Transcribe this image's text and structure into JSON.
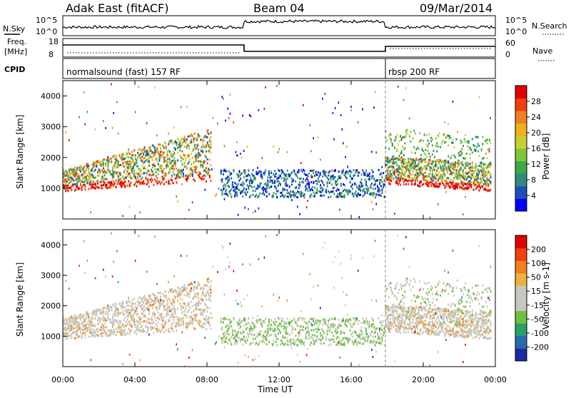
{
  "header": {
    "station": "Adak East (fitACF)",
    "beam": "Beam 04",
    "date": "09/Mar/2014"
  },
  "top_panels": {
    "nsky_label": "N.Sky",
    "nsky_ticks": [
      "10^5",
      "10^0"
    ],
    "nsearch_label": "N.Search",
    "nsearch_ticks": [
      "10^5",
      "10^0"
    ],
    "freq_label": "Freq.",
    "freq_unit": "[MHz]",
    "freq_ticks": [
      "18",
      "8"
    ],
    "nave_label": "Nave",
    "nave_ticks": [
      "60",
      "0"
    ],
    "cpid_label": "CPID",
    "cpid_segments": [
      "normalsound (fast) 157 RF",
      "rbsp 200 RF"
    ]
  },
  "chart_data": [
    {
      "type": "heatmap",
      "ylabel": "Slant Range [km]",
      "xlabel": "Time UT",
      "x_ticks": [
        "00:00",
        "04:00",
        "08:00",
        "12:00",
        "16:00",
        "20:00",
        "00:00"
      ],
      "y_ticks": [
        "1000",
        "2000",
        "3000",
        "4000"
      ],
      "ylim": [
        0,
        4500
      ],
      "colorbar": {
        "label": "Power [dB]",
        "ticks": [
          "28",
          "24",
          "20",
          "16",
          "12",
          "8",
          "4"
        ],
        "colors": [
          "#0000ff",
          "#1f4fb4",
          "#2f8a7a",
          "#3fa64a",
          "#7ec63a",
          "#c8d030",
          "#f0b020",
          "#f08020",
          "#f04010",
          "#e00000"
        ]
      }
    },
    {
      "type": "heatmap",
      "ylabel": "Slant Range [km]",
      "xlabel": "Time UT",
      "x_ticks": [
        "00:00",
        "04:00",
        "08:00",
        "12:00",
        "16:00",
        "20:00",
        "00:00"
      ],
      "y_ticks": [
        "1000",
        "2000",
        "3000",
        "4000"
      ],
      "ylim": [
        0,
        4500
      ],
      "colorbar": {
        "label": "Velocity [m s-1]",
        "ticks": [
          "200",
          "100",
          "50",
          "15",
          "-15",
          "-50",
          "-100",
          "-200"
        ],
        "colors": [
          "#1a2aa0",
          "#2a6ab0",
          "#2aa06a",
          "#70c040",
          "#c8c8c0",
          "#c8c8c0",
          "#f0b040",
          "#f08020",
          "#f04010",
          "#e00000"
        ]
      }
    }
  ]
}
